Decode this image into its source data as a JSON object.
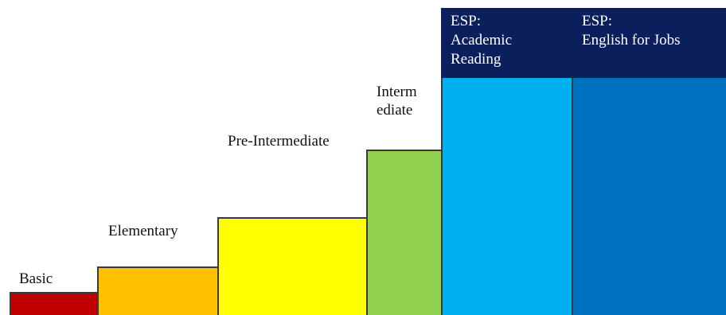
{
  "steps": [
    {
      "label": "Basic",
      "color": "#c00000"
    },
    {
      "label": "Elementary",
      "color": "#ffc000"
    },
    {
      "label": "Pre-Intermediate",
      "color": "#ffff00"
    },
    {
      "label": "Interm\nediate",
      "color": "#92d050"
    },
    {
      "label": "ESP:\nAcademic\nReading",
      "color": "#00b0f0",
      "header_color": "#0b1f5c"
    },
    {
      "label": "ESP:\nEnglish for Jobs",
      "color": "#0070c0",
      "header_color": "#0b1f5c"
    }
  ]
}
